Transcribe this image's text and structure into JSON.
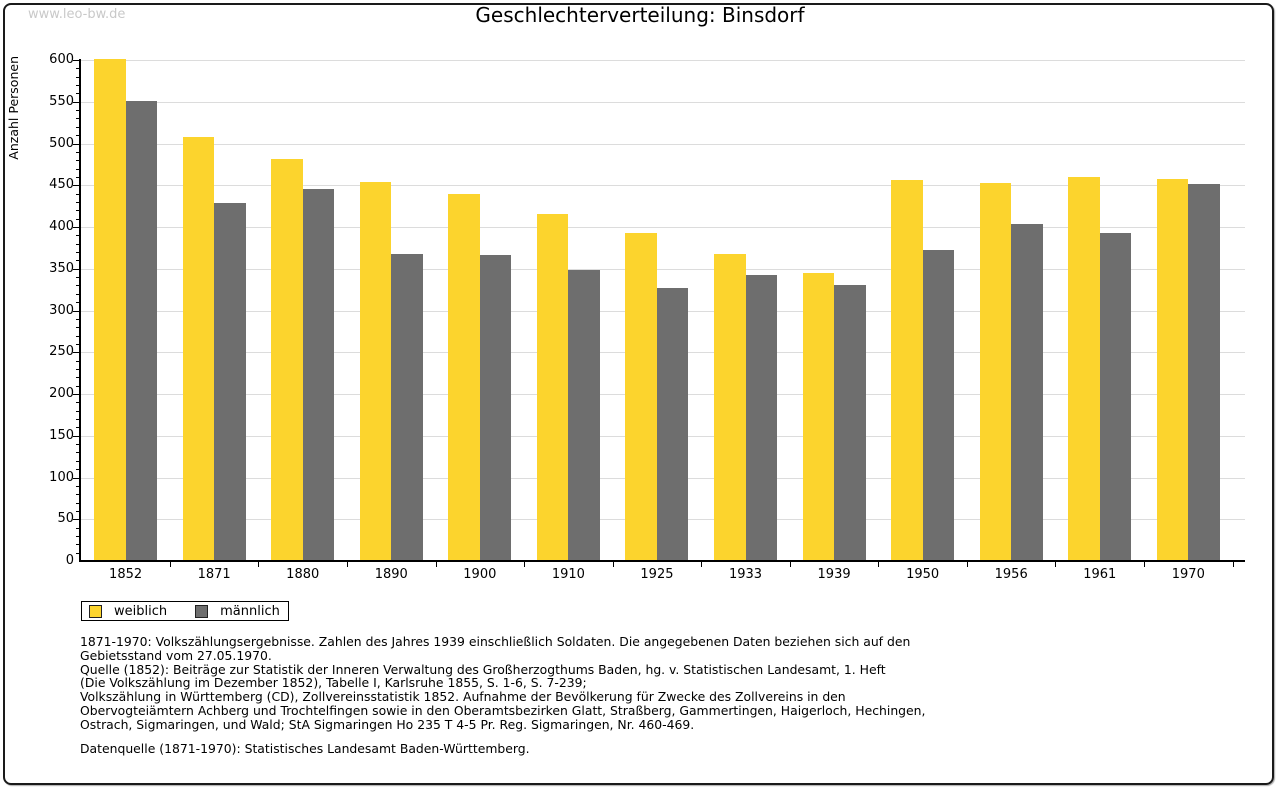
{
  "watermark": "www.leo-bw.de",
  "title": "Geschlechterverteilung: Binsdorf",
  "chart_data": {
    "type": "bar",
    "title": "Geschlechterverteilung: Binsdorf",
    "xlabel": "",
    "ylabel": "Anzahl Personen",
    "ylim": [
      0,
      600
    ],
    "ytick_interval": 50,
    "yminor_interval": 10,
    "grid": true,
    "legend_position": "bottom-left",
    "categories": [
      "1852",
      "1871",
      "1880",
      "1890",
      "1900",
      "1910",
      "1925",
      "1933",
      "1939",
      "1950",
      "1956",
      "1961",
      "1970"
    ],
    "series": [
      {
        "name": "weiblich",
        "color": "#fcd42d",
        "values": [
          601,
          508,
          481,
          454,
          440,
          416,
          393,
          368,
          345,
          456,
          453,
          460,
          458
        ]
      },
      {
        "name": "männlich",
        "color": "#6e6e6e",
        "values": [
          551,
          429,
          446,
          368,
          366,
          348,
          327,
          342,
          330,
          372,
          403,
          393,
          452
        ]
      }
    ]
  },
  "legend": {
    "items": [
      {
        "label": "weiblich",
        "color": "#fcd42d"
      },
      {
        "label": "männlich",
        "color": "#6e6e6e"
      }
    ]
  },
  "footer": {
    "lines": [
      "1871-1970: Volkszählungsergebnisse. Zahlen des Jahres 1939 einschließlich Soldaten. Die angegebenen Daten beziehen sich auf den",
      "Gebietsstand vom 27.05.1970.",
      "Quelle (1852): Beiträge zur Statistik der Inneren Verwaltung des Großherzogthums Baden, hg. v. Statistischen Landesamt, 1. Heft",
      "(Die Volkszählung im Dezember 1852), Tabelle I, Karlsruhe 1855, S. 1-6, S. 7-239;",
      "Volkszählung in Württemberg (CD), Zollvereinsstatistik 1852. Aufnahme der Bevölkerung für Zwecke des Zollvereins in den",
      "Obervogteiämtern Achberg und Trochtelfingen sowie in den Oberamtsbezirken Glatt, Straßberg, Gammertingen, Haigerloch, Hechingen,",
      "Ostrach, Sigmaringen, und Wald; StA Sigmaringen Ho 235 T 4-5 Pr. Reg. Sigmaringen, Nr. 460-469."
    ],
    "datasource": "Datenquelle (1871-1970): Statistisches Landesamt Baden-Württemberg."
  },
  "colors": {
    "female": "#fcd42d",
    "male": "#6e6e6e",
    "gridline": "#dcdcdc",
    "axis": "#000000",
    "watermark": "#c9c9c9"
  }
}
